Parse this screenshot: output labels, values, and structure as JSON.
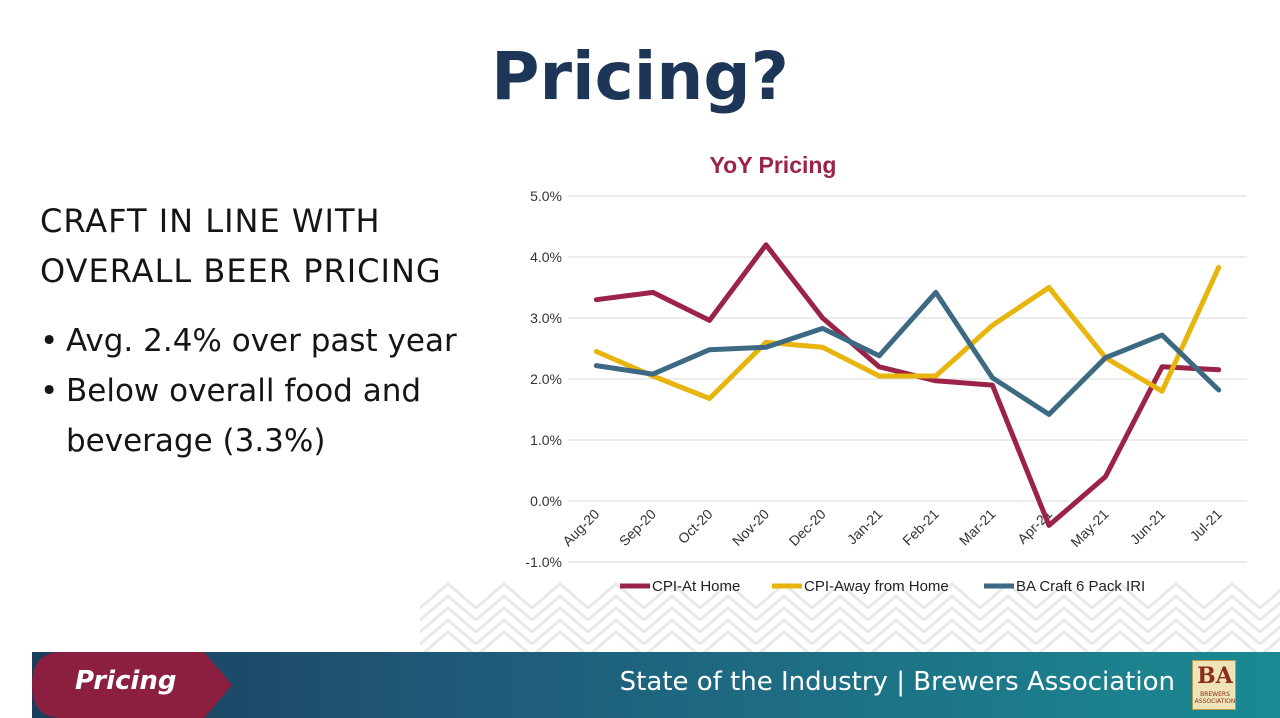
{
  "slide": {
    "title": "Pricing?",
    "heading_line1": "CRAFT IN LINE WITH",
    "heading_line2": "OVERALL BEER PRICING",
    "bullet1": "Avg. 2.4% over past year",
    "bullet2_line1": "Below overall food and",
    "bullet2_line2": "beverage (3.3%)"
  },
  "footer": {
    "section_label": "Pricing",
    "org_text": "State of the Industry  |  Brewers Association",
    "logo_text": "BA",
    "logo_subtext": "BREWERS ASSOCIATION"
  },
  "colors": {
    "title": "#1d3557",
    "chart_title": "#9b2347",
    "footer_tab": "#8c1f3f"
  },
  "chart_data": {
    "type": "line",
    "title": "YoY Pricing",
    "categories": [
      "Aug-20",
      "Sep-20",
      "Oct-20",
      "Nov-20",
      "Dec-20",
      "Jan-21",
      "Feb-21",
      "Mar-21",
      "Apr-21",
      "May-21",
      "Jun-21",
      "Jul-21"
    ],
    "ylim": [
      -1.0,
      5.0
    ],
    "yticks": [
      "5.0%",
      "4.0%",
      "3.0%",
      "2.0%",
      "1.0%",
      "0.0%",
      "-1.0%"
    ],
    "grid": true,
    "legend": "bottom",
    "series": [
      {
        "name": "CPI-At Home",
        "color": "#9b2347",
        "values": [
          3.3,
          3.42,
          2.96,
          4.2,
          3.0,
          2.2,
          1.97,
          1.9,
          -0.4,
          0.4,
          2.2,
          2.15
        ]
      },
      {
        "name": "CPI-Away from Home",
        "color": "#e8b50c",
        "values": [
          2.45,
          2.05,
          1.68,
          2.6,
          2.52,
          2.05,
          2.05,
          2.88,
          3.5,
          2.35,
          1.8,
          3.83
        ]
      },
      {
        "name": "BA Craft 6 Pack IRI",
        "color": "#3d6a82",
        "values": [
          2.22,
          2.08,
          2.48,
          2.52,
          2.83,
          2.38,
          3.42,
          2.02,
          1.42,
          2.35,
          2.72,
          1.82
        ]
      }
    ]
  }
}
